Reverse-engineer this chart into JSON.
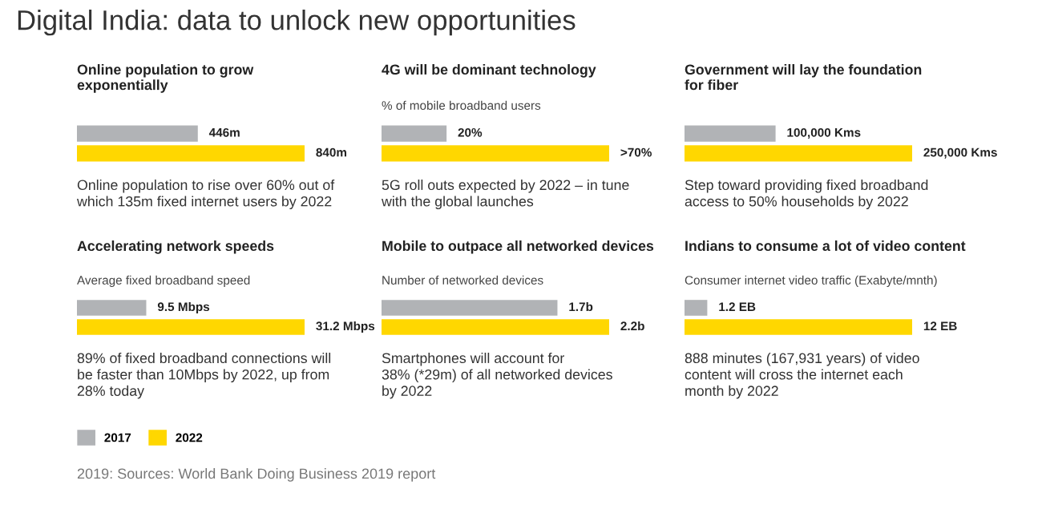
{
  "chart_data": [
    {
      "type": "other",
      "title": "Digital India: data to unlock new opportunities"
    },
    {
      "type": "bar",
      "orientation": "horizontal",
      "title": "Online population to grow\nexponentially",
      "categories": [
        null
      ],
      "series": [
        {
          "color": "#b1b3b6",
          "values": [
            446
          ],
          "value_labels": [
            "446m"
          ]
        },
        {
          "color": "#ffd700",
          "values": [
            840
          ],
          "value_labels": [
            "840m"
          ]
        }
      ],
      "annotations": [
        "Online population to rise over 60% out of\nwhich 135m fixed internet users by 2022"
      ]
    },
    {
      "type": "bar",
      "orientation": "horizontal",
      "title": "4G will be dominant technology",
      "subtitle": "% of mobile broadband users",
      "categories": [
        null
      ],
      "series": [
        {
          "color": "#b1b3b6",
          "values": [
            20
          ],
          "value_labels": [
            "20%"
          ]
        },
        {
          "color": "#ffd700",
          "values": [
            70
          ],
          "value_labels": [
            ">70%"
          ]
        }
      ],
      "annotations": [
        "5G roll outs expected by 2022 – in tune\nwith the global launches"
      ]
    },
    {
      "type": "bar",
      "orientation": "horizontal",
      "title": "Government will lay the foundation\nfor fiber",
      "categories": [
        null
      ],
      "series": [
        {
          "color": "#b1b3b6",
          "values": [
            100000
          ],
          "value_labels": [
            "100,000 Kms"
          ]
        },
        {
          "color": "#ffd700",
          "values": [
            250000
          ],
          "value_labels": [
            "250,000 Kms"
          ]
        }
      ],
      "annotations": [
        "Step toward providing fixed broadband\naccess to 50% households by 2022"
      ]
    },
    {
      "type": "bar",
      "orientation": "horizontal",
      "title": "Accelerating network speeds",
      "subtitle": "Average fixed broadband speed",
      "categories": [
        null
      ],
      "legend": "bottom",
      "series": [
        {
          "name": "2017",
          "color": "#b1b3b6",
          "values": [
            9.5
          ],
          "value_labels": [
            "9.5 Mbps"
          ]
        },
        {
          "name": "2022",
          "color": "#ffd700",
          "values": [
            31.2
          ],
          "value_labels": [
            "31.2 Mbps"
          ]
        }
      ],
      "annotations": [
        "89% of fixed broadband connections will\nbe faster than 10Mbps by 2022, up from\n28% today"
      ]
    },
    {
      "type": "bar",
      "orientation": "horizontal",
      "title": "Mobile to outpace all networked devices",
      "subtitle": "Number of networked devices",
      "categories": [
        null
      ],
      "series": [
        {
          "color": "#b1b3b6",
          "values": [
            1.7
          ],
          "value_labels": [
            "1.7b"
          ]
        },
        {
          "color": "#ffd700",
          "values": [
            2.2
          ],
          "value_labels": [
            "2.2b"
          ]
        }
      ],
      "annotations": [
        "Smartphones will account for\n38% (*29m) of all networked devices\nby 2022"
      ]
    },
    {
      "type": "bar",
      "orientation": "horizontal",
      "title": "Indians to consume a lot of video content",
      "subtitle": "Consumer internet video traffic (Exabyte/mnth)",
      "categories": [
        null
      ],
      "series": [
        {
          "color": "#b1b3b6",
          "values": [
            1.2
          ],
          "value_labels": [
            "1.2 EB"
          ]
        },
        {
          "color": "#ffd700",
          "values": [
            12
          ],
          "value_labels": [
            "12 EB"
          ]
        }
      ],
      "annotations": [
        "888 minutes (167,931 years) of video\ncontent will cross the internet each\nmonth by 2022"
      ]
    },
    {
      "type": "other",
      "annotations": [
        "2019: Sources: World Bank Doing Business 2019 report"
      ]
    }
  ]
}
